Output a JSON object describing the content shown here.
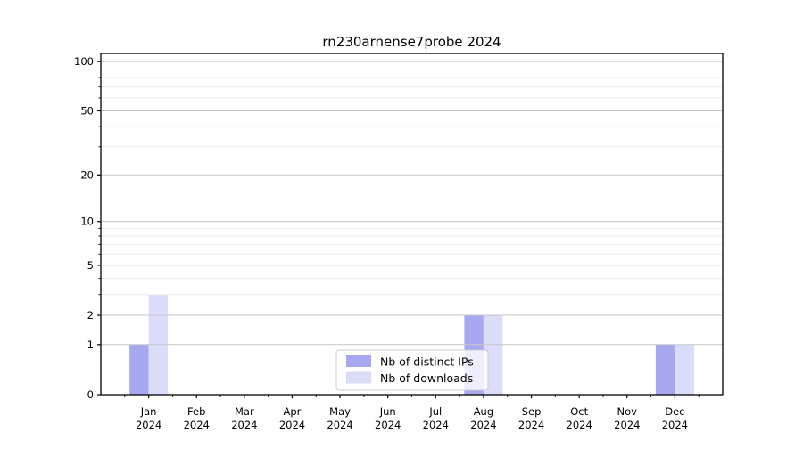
{
  "chart_data": {
    "type": "bar",
    "title": "rn230arnense7probe 2024",
    "categories": [
      "Jan",
      "Feb",
      "Mar",
      "Apr",
      "May",
      "Jun",
      "Jul",
      "Aug",
      "Sep",
      "Oct",
      "Nov",
      "Dec"
    ],
    "category_year": "2024",
    "series": [
      {
        "name": "Nb of distinct IPs",
        "color": "#a8a8f0",
        "values": [
          1,
          0,
          0,
          0,
          0,
          0,
          0,
          2,
          0,
          0,
          0,
          1
        ]
      },
      {
        "name": "Nb of downloads",
        "color": "#dbdbfa",
        "values": [
          3,
          0,
          0,
          0,
          0,
          0,
          0,
          2,
          0,
          0,
          0,
          1
        ]
      }
    ],
    "xlabel": "",
    "ylabel": "",
    "yscale": "log1p",
    "ylim": [
      0,
      112
    ],
    "yticks": [
      0,
      1,
      2,
      5,
      10,
      20,
      50,
      100
    ],
    "minor_yticks": [
      3,
      4,
      6,
      7,
      8,
      9,
      30,
      40,
      60,
      70,
      80,
      90
    ],
    "grid": true,
    "grid_above_bars": true,
    "legend_position": "lower center",
    "colors": {
      "major_grid": "#c6c6c6",
      "minor_grid": "#ebebeb",
      "spine": "#000000",
      "legend_border": "#cccccc",
      "legend_bg_rgba": "rgba(255,255,255,0.8)"
    }
  }
}
